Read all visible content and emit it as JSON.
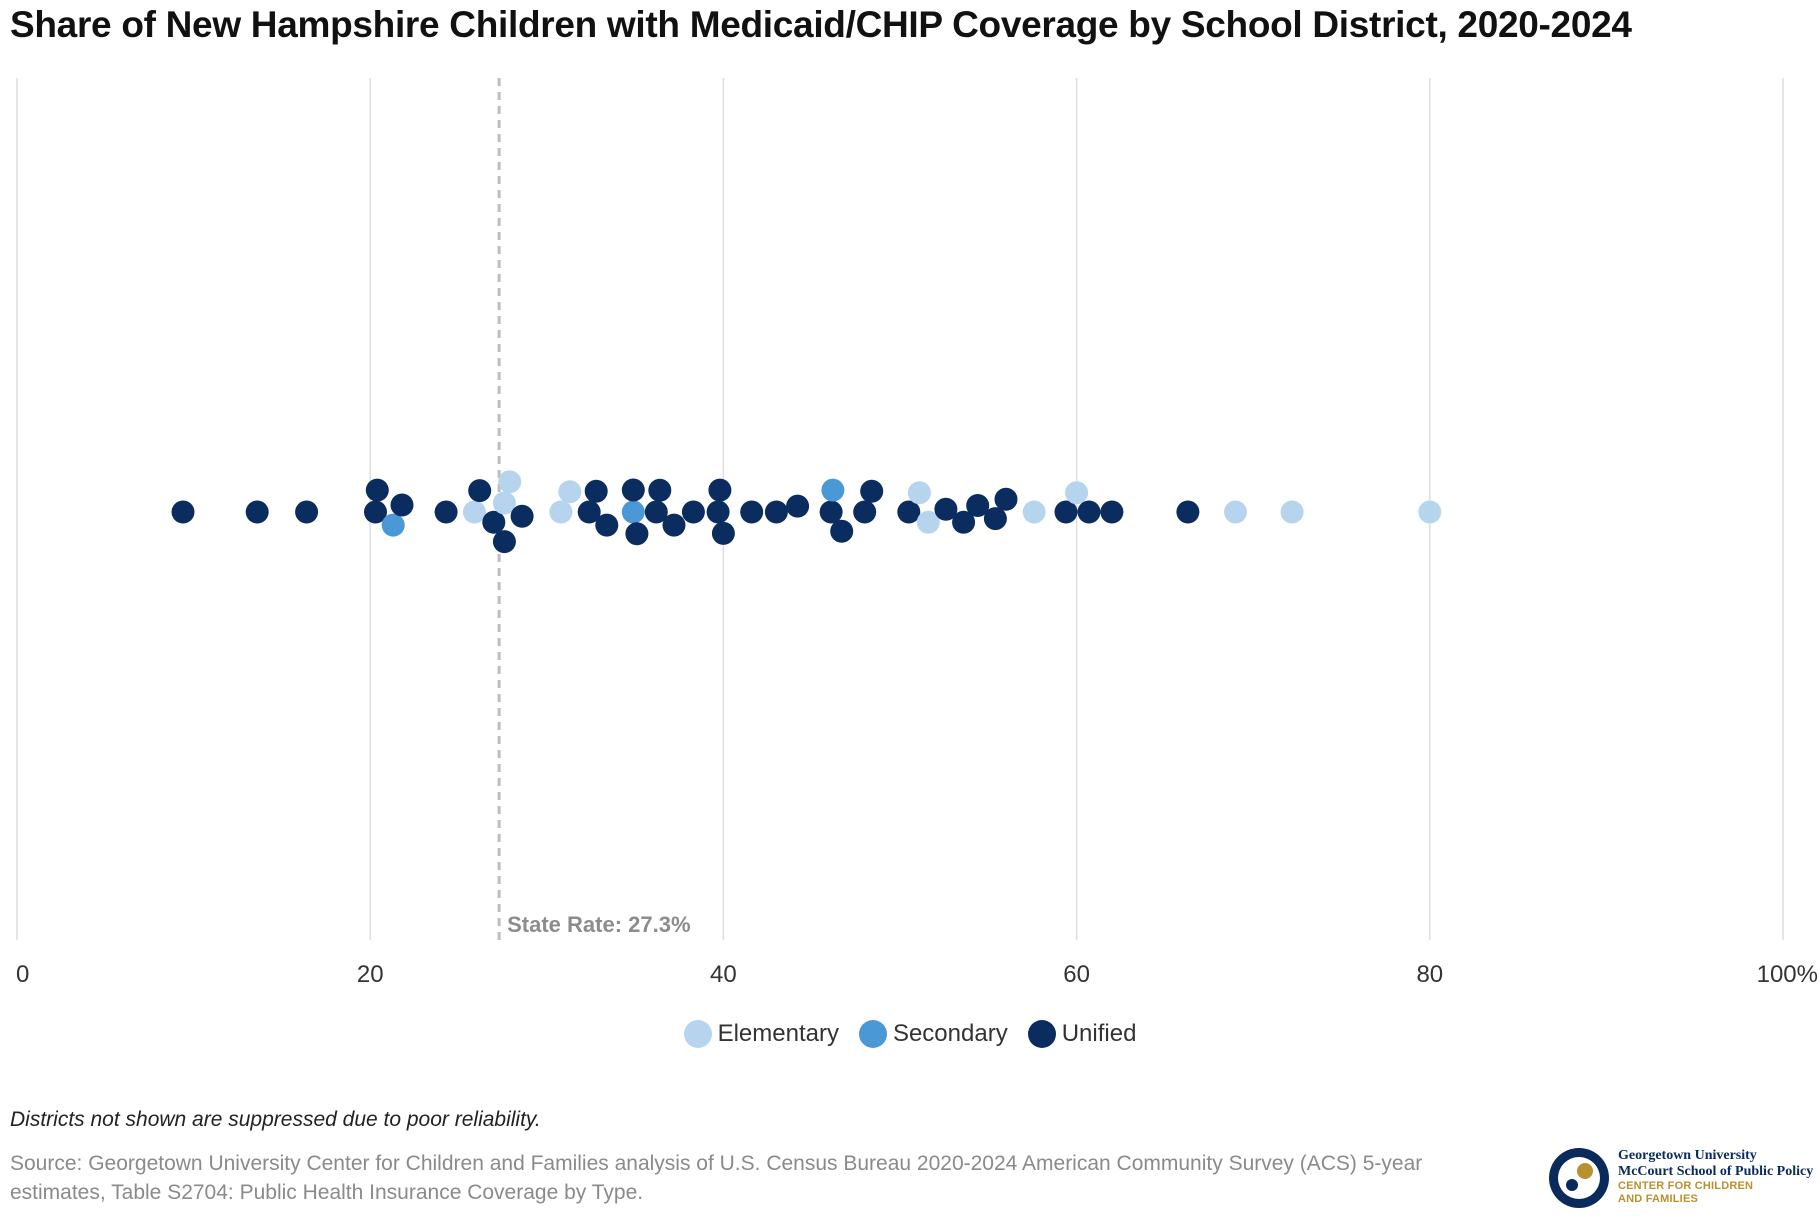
{
  "title": "Share of New Hampshire Children with Medicaid/CHIP Coverage by School District, 2020-2024",
  "chart_data": {
    "type": "scatter",
    "subtype": "beeswarm",
    "xlim": [
      0,
      100
    ],
    "x_ticks": [
      0,
      20,
      40,
      60,
      80,
      100
    ],
    "x_tick_labels": [
      "0",
      "20",
      "40",
      "60",
      "80",
      "100%"
    ],
    "grid": true,
    "reference_line": {
      "value": 27.3,
      "label": "State Rate: 27.3%"
    },
    "legend_position": "bottom-center",
    "series": [
      {
        "name": "Elementary",
        "color": "#b7d4ee",
        "values": [
          25.9,
          27.6,
          27.9,
          30.8,
          31.3,
          51.1,
          51.6,
          57.6,
          60.0,
          69.0,
          72.2,
          80.0
        ]
      },
      {
        "name": "Secondary",
        "color": "#4b98d6",
        "values": [
          21.3,
          34.9,
          46.2
        ]
      },
      {
        "name": "Unified",
        "color": "#0b2c5f",
        "values": [
          9.4,
          13.6,
          16.4,
          20.3,
          20.4,
          21.8,
          24.3,
          26.2,
          27.0,
          27.6,
          28.6,
          32.4,
          32.8,
          33.4,
          34.9,
          35.1,
          36.2,
          36.4,
          37.2,
          38.3,
          39.7,
          39.8,
          40.0,
          41.6,
          43.0,
          44.2,
          46.1,
          46.7,
          48.0,
          48.4,
          50.5,
          52.6,
          53.6,
          54.4,
          55.4,
          56.0,
          59.4,
          60.7,
          62.0,
          66.3
        ]
      }
    ]
  },
  "note": "Districts not shown are suppressed due to poor reliability.",
  "source": "Source: Georgetown University Center for Children and Families analysis of U.S. Census Bureau 2020-2024 American Community Survey (ACS) 5-year estimates, Table S2704: Public Health Insurance Coverage by Type.",
  "logo": {
    "line1": "Georgetown University",
    "line2": "McCourt School of Public Policy",
    "line3": "CENTER FOR CHILDREN",
    "line4": "AND FAMILIES",
    "colors": {
      "navy": "#0a2a5c",
      "gold": "#b8902e"
    }
  }
}
